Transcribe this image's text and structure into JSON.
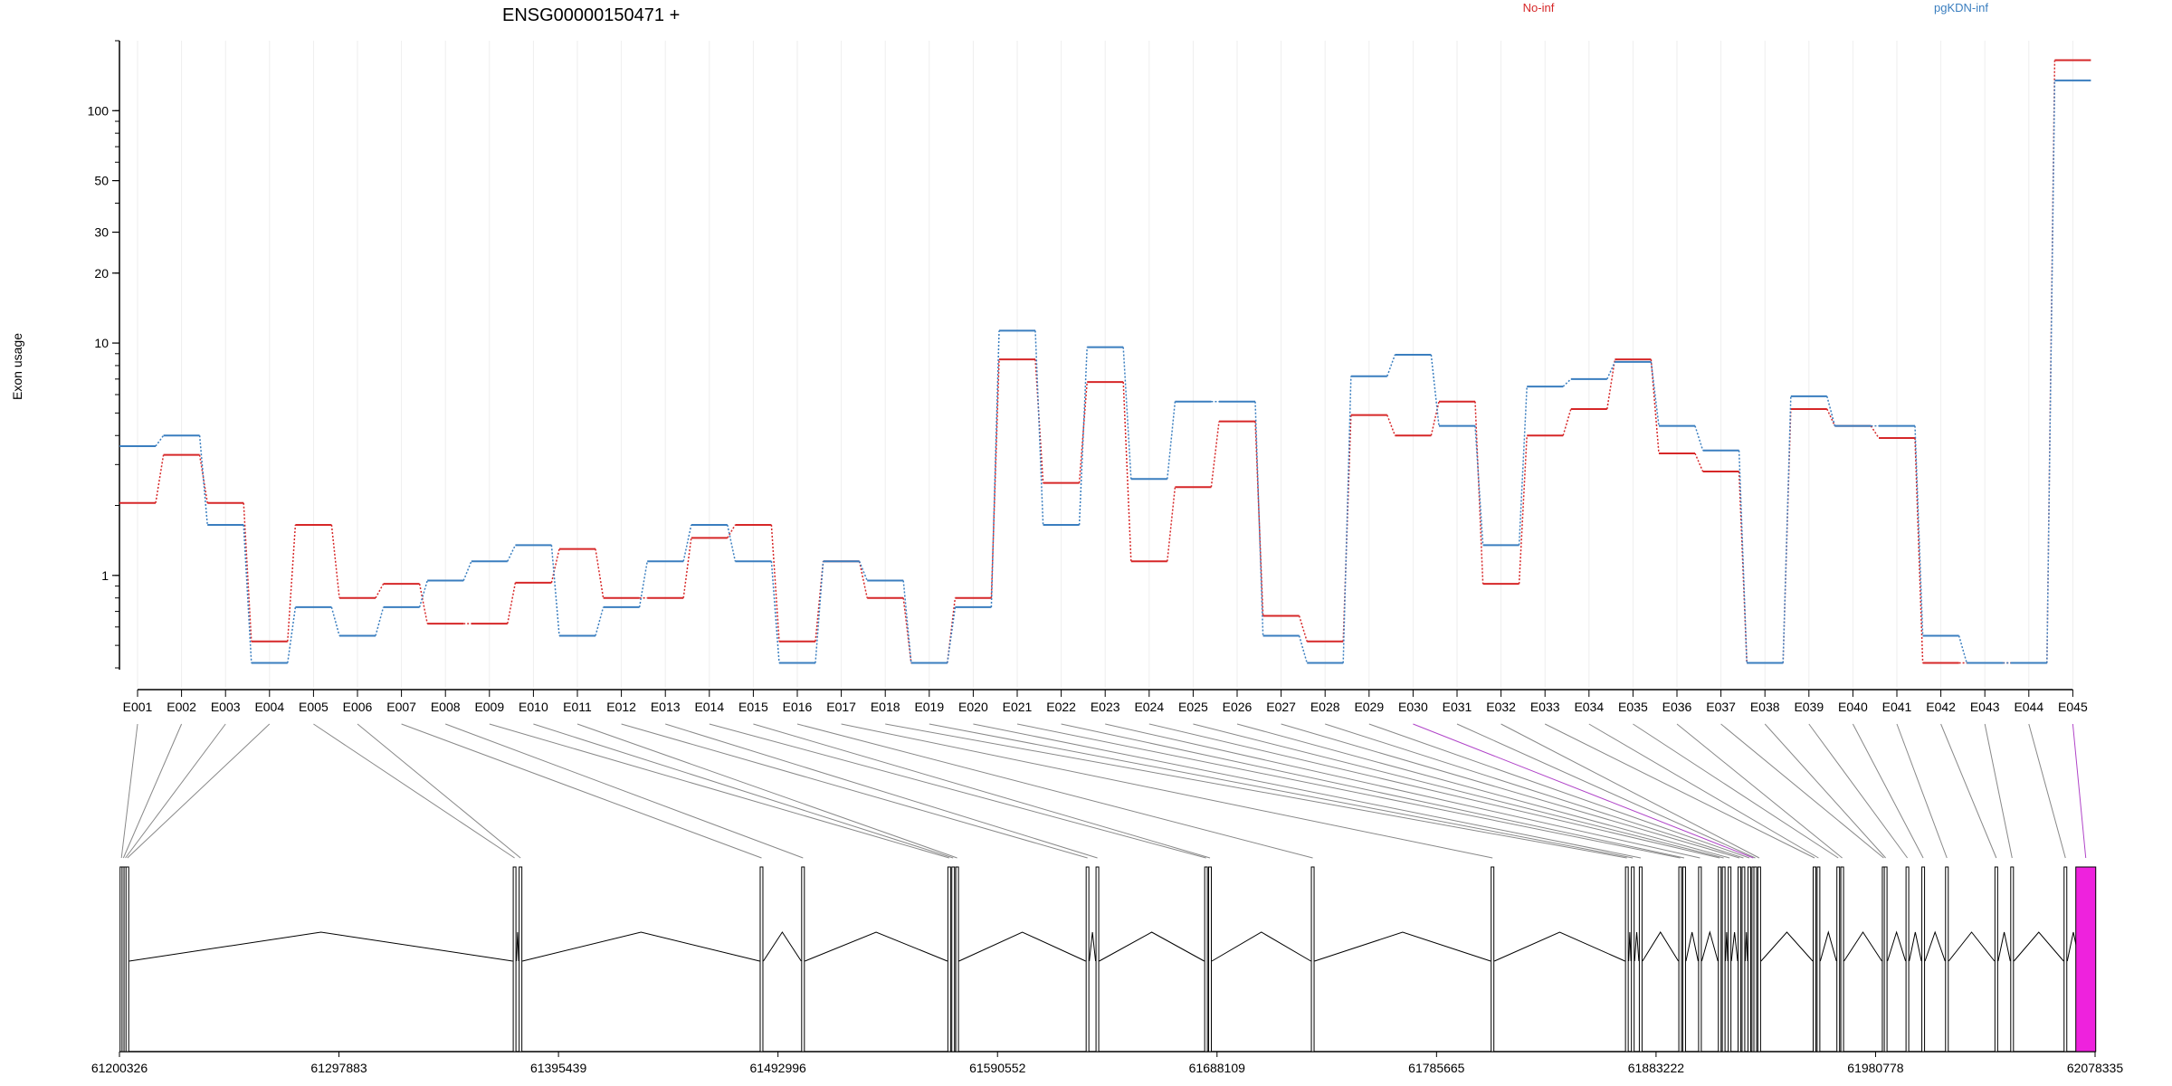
{
  "chart_data": {
    "type": "line",
    "title": "ENSG00000150471 +",
    "ylabel": "Exon usage",
    "y_scale": "log",
    "ylim": [
      0.4,
      200
    ],
    "y_ticks": [
      1,
      10,
      20,
      30,
      50,
      100
    ],
    "grid": "vertical-light",
    "legend_placement": "top",
    "categories": [
      "E001",
      "E002",
      "E003",
      "E004",
      "E005",
      "E006",
      "E007",
      "E008",
      "E009",
      "E010",
      "E011",
      "E012",
      "E013",
      "E014",
      "E015",
      "E016",
      "E017",
      "E018",
      "E019",
      "E020",
      "E021",
      "E022",
      "E023",
      "E024",
      "E025",
      "E026",
      "E027",
      "E028",
      "E029",
      "E030",
      "E031",
      "E032",
      "E033",
      "E034",
      "E035",
      "E036",
      "E037",
      "E038",
      "E039",
      "E040",
      "E041",
      "E042",
      "E043",
      "E044",
      "E045"
    ],
    "series": [
      {
        "name": "No-inf",
        "color": "#d62728",
        "values": [
          2.05,
          3.3,
          2.05,
          0.52,
          1.65,
          0.8,
          0.92,
          0.62,
          0.62,
          0.93,
          1.3,
          0.8,
          0.8,
          1.45,
          1.65,
          0.52,
          1.15,
          0.8,
          0.42,
          0.8,
          8.5,
          2.5,
          6.8,
          1.15,
          2.4,
          4.6,
          0.67,
          0.52,
          4.9,
          4.0,
          5.6,
          0.92,
          4.0,
          5.2,
          8.5,
          3.35,
          2.8,
          0.42,
          5.2,
          4.4,
          3.9,
          0.42,
          0.42,
          0.42,
          165
        ]
      },
      {
        "name": "pgKDN-inf",
        "color": "#3a7ebf",
        "values": [
          3.6,
          4.0,
          1.65,
          0.42,
          0.73,
          0.55,
          0.73,
          0.95,
          1.15,
          1.35,
          0.55,
          0.73,
          1.15,
          1.65,
          1.15,
          0.42,
          1.15,
          0.95,
          0.42,
          0.73,
          11.3,
          1.65,
          9.6,
          2.6,
          5.6,
          5.6,
          0.55,
          0.42,
          7.2,
          8.9,
          4.4,
          1.35,
          6.5,
          7.0,
          8.3,
          4.4,
          3.45,
          0.42,
          5.9,
          4.4,
          4.4,
          0.55,
          0.42,
          0.42,
          135
        ]
      }
    ]
  },
  "gene_model": {
    "coordinate_ticks": [
      "61200326",
      "61297883",
      "61395439",
      "61492996",
      "61590552",
      "61688109",
      "61785665",
      "61883222",
      "61980778",
      "62078335"
    ],
    "highlight_exon": "E045",
    "highlight_color": "#ee22dd"
  }
}
